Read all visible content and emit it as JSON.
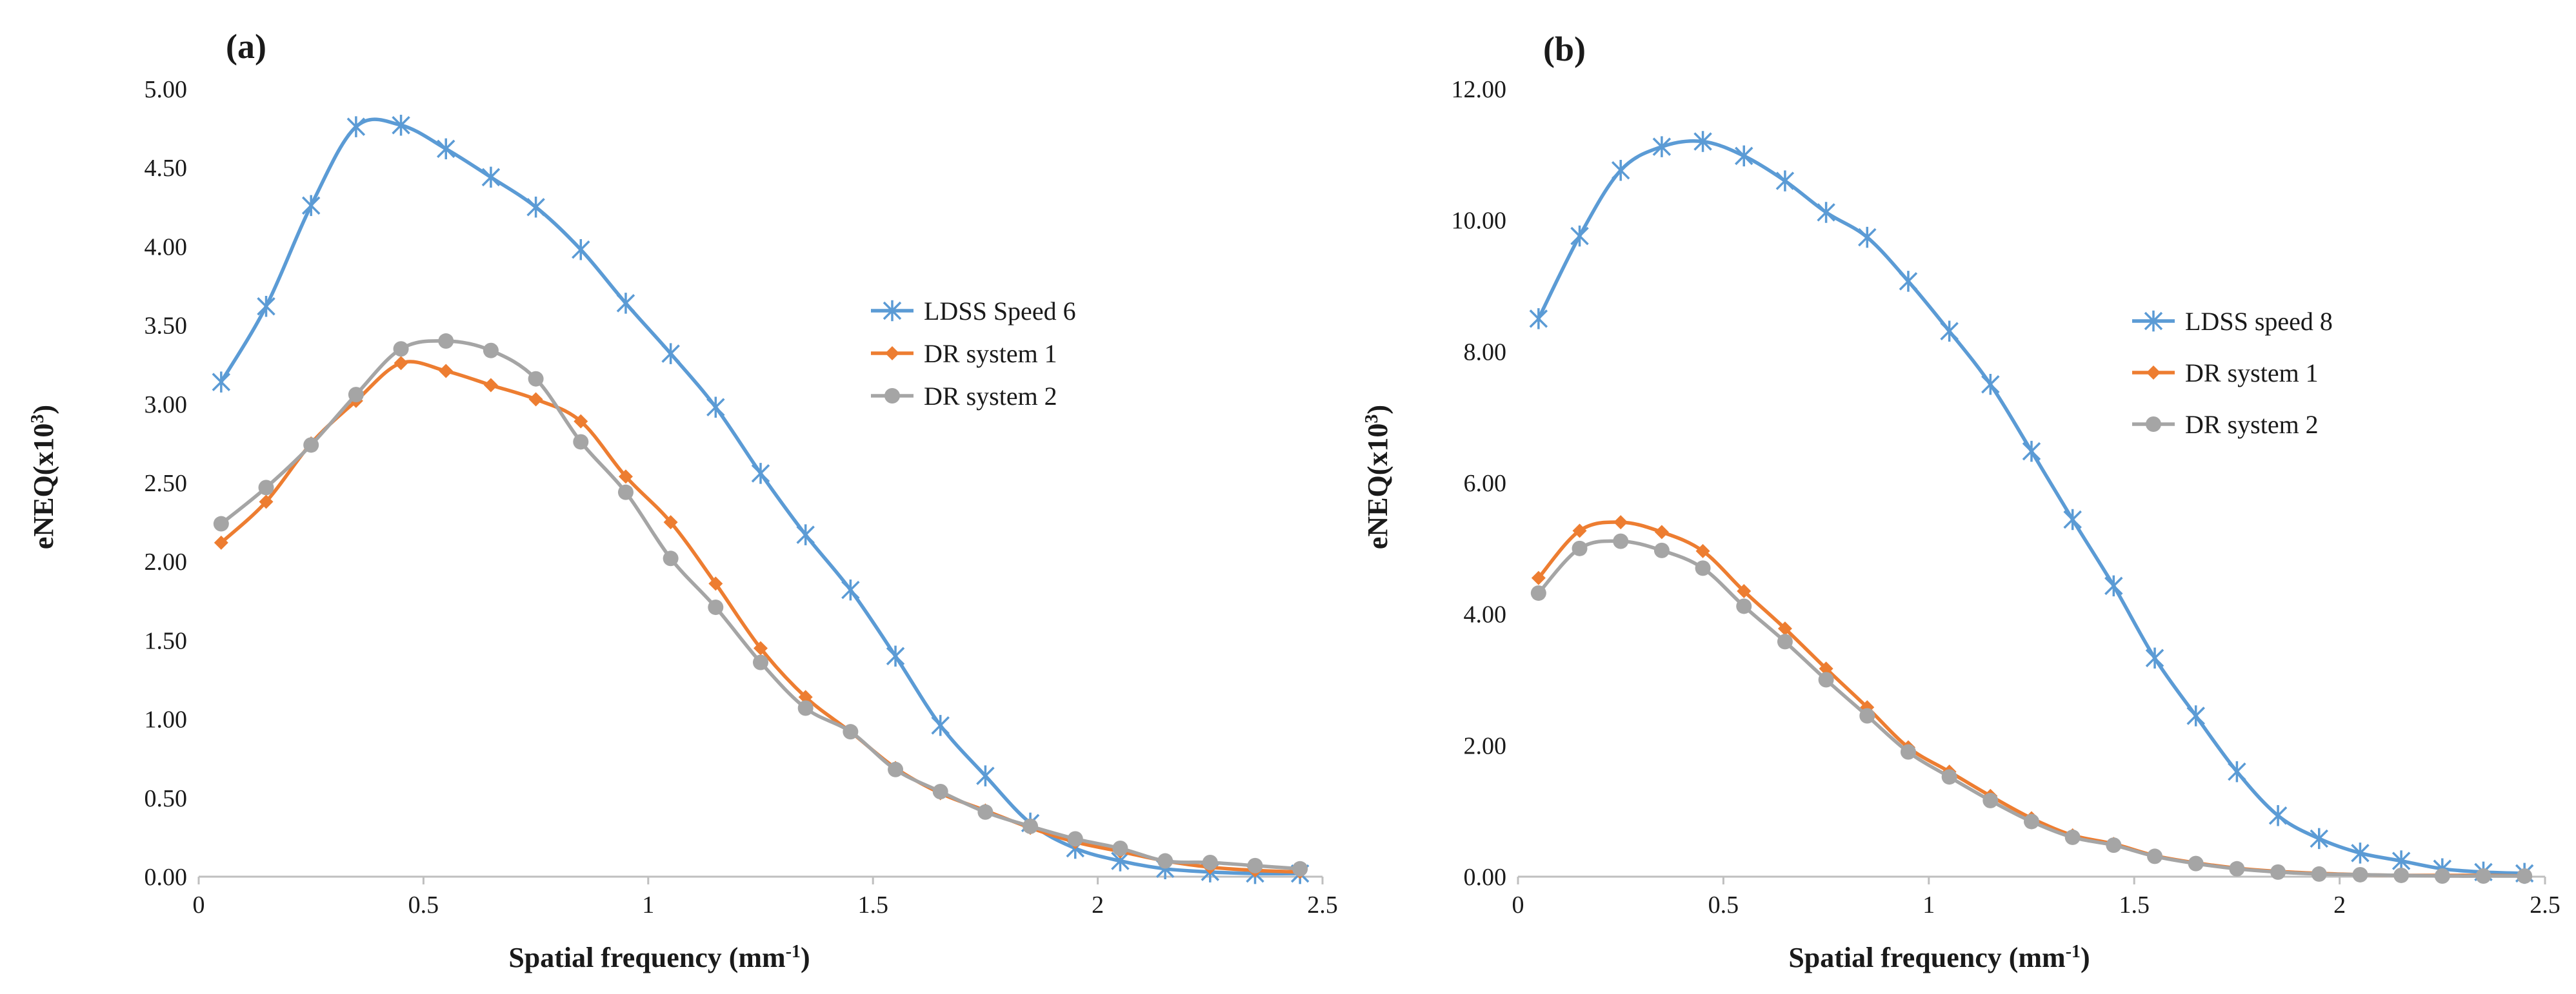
{
  "figure": {
    "panels": [
      "(a)",
      "(b)"
    ]
  },
  "chart_data": [
    {
      "type": "line",
      "panel_label": "(a)",
      "xlabel": "Spatial frequency (mm",
      "xlabel_sup": "-1",
      "xlabel_close": ")",
      "ylabel": "eNEQ(x10",
      "ylabel_sup": "3",
      "ylabel_close": ")",
      "xlim": [
        0,
        2.5
      ],
      "ylim": [
        0,
        5.0
      ],
      "xticks": [
        0,
        0.5,
        1,
        1.5,
        2,
        2.5
      ],
      "xtick_labels": [
        "0",
        "0.5",
        "1",
        "1.5",
        "2",
        "2.5"
      ],
      "yticks": [
        0,
        0.5,
        1,
        1.5,
        2,
        2.5,
        3,
        3.5,
        4,
        4.5,
        5
      ],
      "ytick_labels": [
        "0.00",
        "0.50",
        "1.00",
        "1.50",
        "2.00",
        "2.50",
        "3.00",
        "3.50",
        "4.00",
        "4.50",
        "5.00"
      ],
      "legend_position": "center-right",
      "x": [
        0.05,
        0.15,
        0.25,
        0.35,
        0.45,
        0.55,
        0.65,
        0.75,
        0.85,
        0.95,
        1.05,
        1.15,
        1.25,
        1.35,
        1.45,
        1.55,
        1.65,
        1.75,
        1.85,
        1.95,
        2.05,
        2.15,
        2.25,
        2.35,
        2.45
      ],
      "series": [
        {
          "name": "LDSS Speed 6",
          "color": "#5b9bd5",
          "marker": "star",
          "values": [
            3.14,
            3.62,
            4.26,
            4.76,
            4.77,
            4.62,
            4.44,
            4.25,
            3.98,
            3.64,
            3.32,
            2.98,
            2.56,
            2.17,
            1.82,
            1.4,
            0.96,
            0.64,
            0.34,
            0.18,
            0.1,
            0.05,
            0.03,
            0.02,
            0.02
          ]
        },
        {
          "name": "DR system 1",
          "color": "#ed7d31",
          "marker": "diamond",
          "values": [
            2.12,
            2.38,
            2.75,
            3.02,
            3.26,
            3.21,
            3.12,
            3.03,
            2.89,
            2.54,
            2.25,
            1.86,
            1.45,
            1.14,
            0.92,
            0.69,
            0.53,
            0.42,
            0.31,
            0.22,
            0.16,
            0.1,
            0.06,
            0.04,
            0.03
          ]
        },
        {
          "name": "DR system 2",
          "color": "#a5a5a5",
          "marker": "circle",
          "values": [
            2.24,
            2.47,
            2.74,
            3.06,
            3.35,
            3.4,
            3.34,
            3.16,
            2.76,
            2.44,
            2.02,
            1.71,
            1.36,
            1.07,
            0.92,
            0.68,
            0.54,
            0.41,
            0.32,
            0.24,
            0.18,
            0.1,
            0.09,
            0.07,
            0.05
          ]
        }
      ]
    },
    {
      "type": "line",
      "panel_label": "(b)",
      "xlabel": "Spatial frequency (mm",
      "xlabel_sup": "-1",
      "xlabel_close": ")",
      "ylabel": "eNEQ(x10",
      "ylabel_sup": "3",
      "ylabel_close": ")",
      "xlim": [
        0,
        2.5
      ],
      "ylim": [
        0,
        12.0
      ],
      "xticks": [
        0,
        0.5,
        1,
        1.5,
        2,
        2.5
      ],
      "xtick_labels": [
        "0",
        "0.5",
        "1",
        "1.5",
        "2",
        "2.5"
      ],
      "yticks": [
        0,
        2,
        4,
        6,
        8,
        10,
        12
      ],
      "ytick_labels": [
        "0.00",
        "2.00",
        "4.00",
        "6.00",
        "8.00",
        "10.00",
        "12.00"
      ],
      "legend_position": "center-right",
      "x": [
        0.05,
        0.15,
        0.25,
        0.35,
        0.45,
        0.55,
        0.65,
        0.75,
        0.85,
        0.95,
        1.05,
        1.15,
        1.25,
        1.35,
        1.45,
        1.55,
        1.65,
        1.75,
        1.85,
        1.95,
        2.05,
        2.15,
        2.25,
        2.35,
        2.45
      ],
      "series": [
        {
          "name": "LDSS speed 8",
          "color": "#5b9bd5",
          "marker": "star",
          "values": [
            8.5,
            9.76,
            10.76,
            11.12,
            11.2,
            10.98,
            10.6,
            10.12,
            9.74,
            9.07,
            8.31,
            7.5,
            6.48,
            5.44,
            4.43,
            3.33,
            2.45,
            1.6,
            0.93,
            0.58,
            0.36,
            0.24,
            0.12,
            0.07,
            0.05
          ]
        },
        {
          "name": "DR system 1",
          "color": "#ed7d31",
          "marker": "diamond",
          "values": [
            4.55,
            5.27,
            5.4,
            5.25,
            4.96,
            4.35,
            3.78,
            3.17,
            2.58,
            1.97,
            1.6,
            1.23,
            0.89,
            0.63,
            0.5,
            0.32,
            0.21,
            0.13,
            0.08,
            0.05,
            0.03,
            0.02,
            0.02,
            0.02,
            0.01
          ]
        },
        {
          "name": "DR system 2",
          "color": "#a5a5a5",
          "marker": "circle",
          "values": [
            4.32,
            5.0,
            5.11,
            4.97,
            4.7,
            4.12,
            3.58,
            3.0,
            2.45,
            1.9,
            1.52,
            1.16,
            0.84,
            0.6,
            0.48,
            0.31,
            0.2,
            0.12,
            0.07,
            0.04,
            0.03,
            0.02,
            0.01,
            0.01,
            0.01
          ]
        }
      ]
    }
  ]
}
